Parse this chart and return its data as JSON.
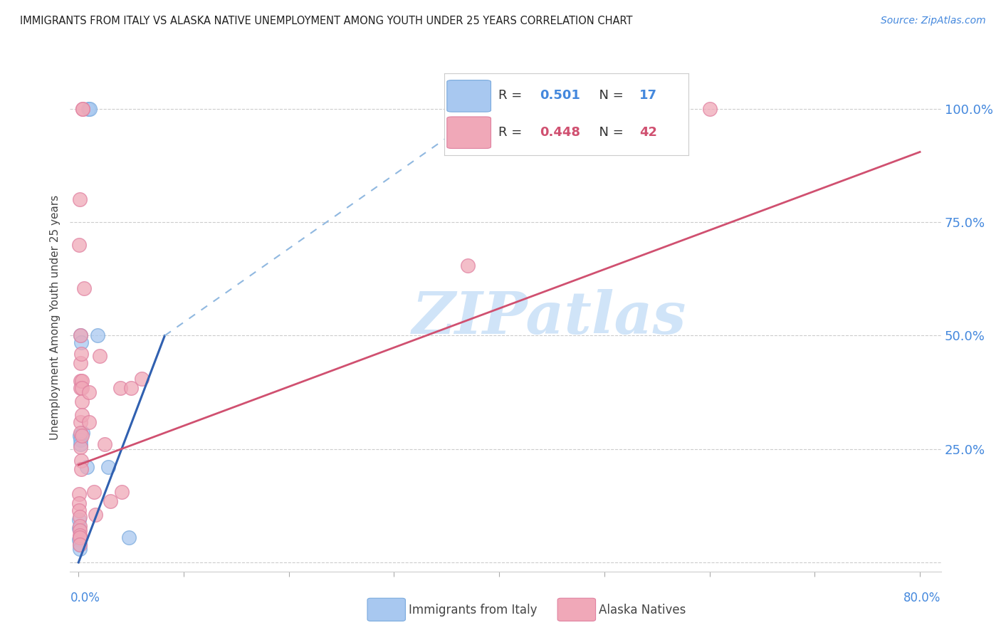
{
  "title": "IMMIGRANTS FROM ITALY VS ALASKA NATIVE UNEMPLOYMENT AMONG YOUTH UNDER 25 YEARS CORRELATION CHART",
  "source": "Source: ZipAtlas.com",
  "ylabel": "Unemployment Among Youth under 25 years",
  "yticks": [
    0.0,
    0.25,
    0.5,
    0.75,
    1.0
  ],
  "ytick_labels": [
    "",
    "25.0%",
    "50.0%",
    "75.0%",
    "100.0%"
  ],
  "xticks": [
    0.0,
    0.1,
    0.2,
    0.3,
    0.4,
    0.5,
    0.6,
    0.7,
    0.8
  ],
  "blue_R": "0.501",
  "blue_N": "17",
  "pink_R": "0.448",
  "pink_N": "42",
  "blue_color": "#a8c8f0",
  "pink_color": "#f0a8b8",
  "blue_scatter_edge": "#7aaadd",
  "pink_scatter_edge": "#e080a0",
  "blue_line_color": "#3060b0",
  "pink_line_color": "#d05070",
  "blue_dash_color": "#90b8e0",
  "watermark": "ZIPatlas",
  "watermark_color": "#d0e4f8",
  "blue_points": [
    [
      0.0008,
      0.095
    ],
    [
      0.0008,
      0.075
    ],
    [
      0.0008,
      0.05
    ],
    [
      0.001,
      0.04
    ],
    [
      0.0012,
      0.03
    ],
    [
      0.0015,
      0.28
    ],
    [
      0.0018,
      0.27
    ],
    [
      0.002,
      0.26
    ],
    [
      0.0022,
      0.5
    ],
    [
      0.0025,
      0.485
    ],
    [
      0.004,
      0.285
    ],
    [
      0.008,
      0.21
    ],
    [
      0.009,
      1.0
    ],
    [
      0.011,
      1.0
    ],
    [
      0.018,
      0.5
    ],
    [
      0.028,
      0.21
    ],
    [
      0.048,
      0.055
    ]
  ],
  "pink_points": [
    [
      0.0005,
      0.7
    ],
    [
      0.0006,
      0.15
    ],
    [
      0.0007,
      0.13
    ],
    [
      0.0008,
      0.115
    ],
    [
      0.0009,
      0.1
    ],
    [
      0.0009,
      0.08
    ],
    [
      0.001,
      0.07
    ],
    [
      0.001,
      0.06
    ],
    [
      0.001,
      0.055
    ],
    [
      0.001,
      0.04
    ],
    [
      0.0015,
      0.8
    ],
    [
      0.0017,
      0.5
    ],
    [
      0.0018,
      0.44
    ],
    [
      0.0019,
      0.4
    ],
    [
      0.002,
      0.385
    ],
    [
      0.002,
      0.31
    ],
    [
      0.0022,
      0.285
    ],
    [
      0.0022,
      0.255
    ],
    [
      0.0023,
      0.225
    ],
    [
      0.0025,
      0.205
    ],
    [
      0.0028,
      0.46
    ],
    [
      0.003,
      0.4
    ],
    [
      0.003,
      0.385
    ],
    [
      0.0032,
      0.355
    ],
    [
      0.0034,
      0.325
    ],
    [
      0.0035,
      0.28
    ],
    [
      0.004,
      1.0
    ],
    [
      0.0042,
      1.0
    ],
    [
      0.005,
      0.605
    ],
    [
      0.01,
      0.375
    ],
    [
      0.01,
      0.31
    ],
    [
      0.015,
      0.155
    ],
    [
      0.016,
      0.105
    ],
    [
      0.02,
      0.455
    ],
    [
      0.025,
      0.26
    ],
    [
      0.03,
      0.135
    ],
    [
      0.04,
      0.385
    ],
    [
      0.041,
      0.155
    ],
    [
      0.05,
      0.385
    ],
    [
      0.06,
      0.405
    ],
    [
      0.37,
      0.655
    ],
    [
      0.6,
      1.0
    ]
  ],
  "blue_solid_line_x": [
    0.0,
    0.082
  ],
  "blue_solid_line_y": [
    0.0,
    0.5
  ],
  "blue_dash_line_x": [
    0.082,
    0.42
  ],
  "blue_dash_line_y": [
    0.5,
    1.05
  ],
  "pink_line_x": [
    0.0,
    0.8
  ],
  "pink_line_y": [
    0.215,
    0.905
  ],
  "xlim": [
    -0.008,
    0.82
  ],
  "ylim": [
    -0.02,
    1.1
  ],
  "figsize": [
    14.06,
    8.92
  ],
  "dpi": 100
}
